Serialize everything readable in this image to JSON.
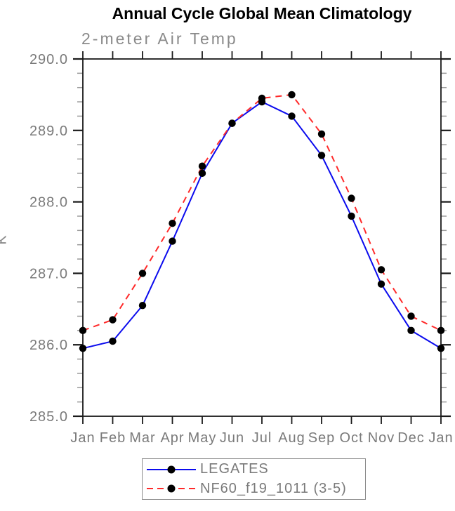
{
  "header": {
    "title": "Annual Cycle Global Mean Climatology",
    "subtitle": "2-meter Air Temp"
  },
  "axes": {
    "ylabel": "K",
    "ytick_labels": [
      "285.0",
      "286.0",
      "287.0",
      "288.0",
      "289.0",
      "290.0"
    ]
  },
  "legend": {
    "entries": [
      {
        "label": "LEGATES"
      },
      {
        "label": "NF60_f19_1011 (3-5)"
      }
    ]
  },
  "colors": {
    "legates_line": "#0b0bee",
    "nf60_line": "#ff2a2a",
    "marker": "#000000",
    "axis": "#1a1a1a",
    "minor_tick": "#999999",
    "label_gray": "#7a7a7a"
  },
  "chart_data": {
    "type": "line",
    "title": "Annual Cycle Global Mean Climatology",
    "subtitle": "2-meter Air Temp",
    "xlabel": "",
    "ylabel": "K",
    "categories": [
      "Jan",
      "Feb",
      "Mar",
      "Apr",
      "May",
      "Jun",
      "Jul",
      "Aug",
      "Sep",
      "Oct",
      "Nov",
      "Dec",
      "Jan"
    ],
    "series": [
      {
        "name": "LEGATES",
        "color": "#0b0bee",
        "style": "solid",
        "marker": "circle",
        "marker_color": "#000000",
        "values": [
          285.95,
          286.05,
          286.55,
          287.45,
          288.4,
          289.1,
          289.4,
          289.2,
          288.65,
          287.8,
          286.85,
          286.2,
          285.95
        ]
      },
      {
        "name": "NF60_f19_1011 (3-5)",
        "color": "#ff2a2a",
        "style": "dashed",
        "marker": "circle",
        "marker_color": "#000000",
        "values": [
          286.2,
          286.35,
          287.0,
          287.7,
          288.5,
          289.1,
          289.45,
          289.5,
          288.95,
          288.05,
          287.05,
          286.4,
          286.2
        ]
      }
    ],
    "ylim": [
      285.0,
      290.0
    ],
    "ytick_interval": 1.0,
    "y_minor_interval": 0.2,
    "grid": false,
    "legend_position": "bottom",
    "ticks_all_sides": true
  }
}
